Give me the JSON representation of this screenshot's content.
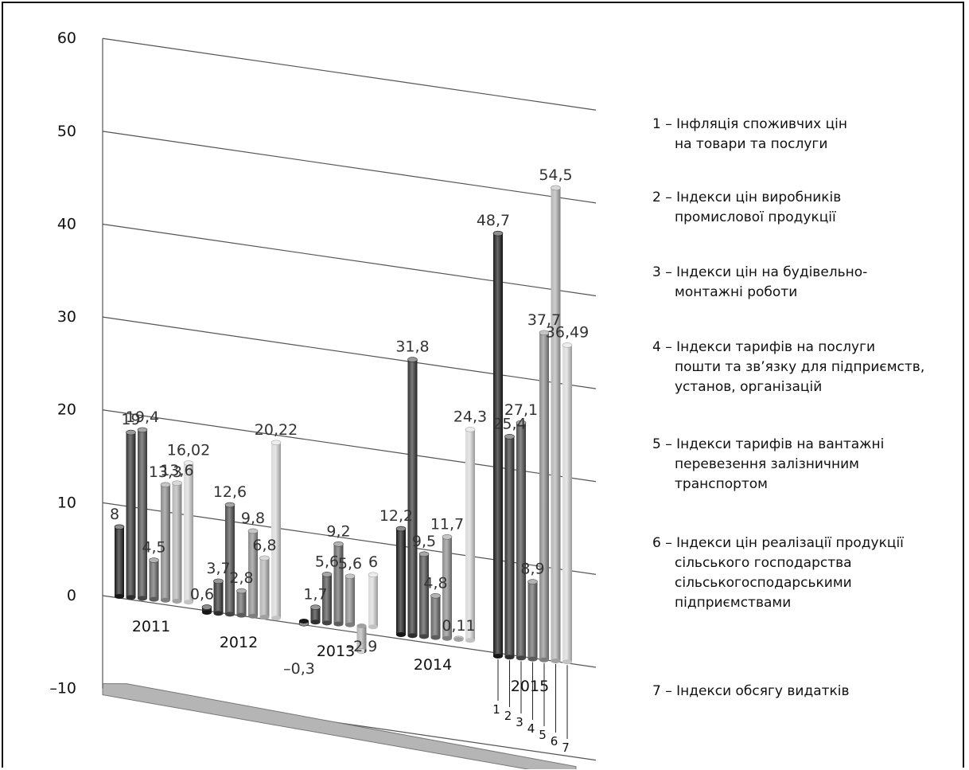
{
  "chart_data": {
    "type": "bar",
    "categories": [
      "2011",
      "2012",
      "2013",
      "2014",
      "2015"
    ],
    "series_index_labels": [
      "1",
      "2",
      "3",
      "4",
      "5",
      "6",
      "7"
    ],
    "series_colors": [
      "#1a1a1a",
      "#333333",
      "#4d4d4d",
      "#666666",
      "#8c8c8c",
      "#b3b3b3",
      "#d9d9d9"
    ],
    "series": [
      {
        "values": [
          8,
          0.6,
          -0.3,
          12.2,
          48.7
        ],
        "labels": [
          "8",
          "0,6",
          "–0,3",
          "12,2",
          "48,7"
        ]
      },
      {
        "values": [
          19,
          3.7,
          1.7,
          31.8,
          25.4
        ],
        "labels": [
          "19",
          "3,7",
          "1,7",
          "31,8",
          "25,4"
        ]
      },
      {
        "values": [
          19.4,
          12.6,
          5.6,
          9.5,
          27.1
        ],
        "labels": [
          "19,4",
          "12,6",
          "5,6",
          "9,5",
          "27,1"
        ]
      },
      {
        "values": [
          4.5,
          2.8,
          9.2,
          4.8,
          8.9
        ],
        "labels": [
          "4,5",
          "2,8",
          "9,2",
          "4,8",
          "8,9"
        ]
      },
      {
        "values": [
          13.3,
          9.8,
          5.6,
          11.7,
          37.7
        ],
        "labels": [
          "13,3",
          "9,8",
          "5,6",
          "11,7",
          "37,7"
        ]
      },
      {
        "values": [
          13.6,
          6.8,
          -2.9,
          0.11,
          54.5
        ],
        "labels": [
          "13,6",
          "6,8",
          "–2,9",
          "0,11",
          "54,5"
        ]
      },
      {
        "values": [
          16.02,
          20.22,
          6,
          24.3,
          36.49
        ],
        "labels": [
          "16,02",
          "20,22",
          "6",
          "24,3",
          "36,49"
        ]
      }
    ],
    "ylim": [
      -10,
      60
    ],
    "yticks": [
      -10,
      0,
      10,
      20,
      30,
      40,
      50,
      60
    ],
    "ytick_labels": [
      "–10",
      "0",
      "10",
      "20",
      "30",
      "40",
      "50",
      "60"
    ],
    "grid": true,
    "style": "3d-cylinder",
    "legend_position": "right",
    "legend": [
      {
        "lines": [
          "1 – Інфляція споживчих цін",
          "на товари та послуги"
        ]
      },
      {
        "lines": [
          "2 – Індекси цін виробників",
          "промислової продукції"
        ]
      },
      {
        "lines": [
          "3 – Індекси цін на будівельно-",
          "монтажні роботи"
        ]
      },
      {
        "lines": [
          "4 – Індекси тарифів на послуги",
          "пошти та зв’язку для підприємств,",
          "установ, організацій"
        ]
      },
      {
        "lines": [
          "5 – Індекси тарифів на вантажні",
          "перевезення залізничним",
          "транспортом"
        ]
      },
      {
        "lines": [
          "6 – Індекси цін реалізації продукції",
          "сільського господарства",
          "сільськогосподарськими",
          "підприємствами"
        ]
      },
      {
        "lines": [
          "7 – Індекси обсягу видатків"
        ]
      }
    ]
  }
}
